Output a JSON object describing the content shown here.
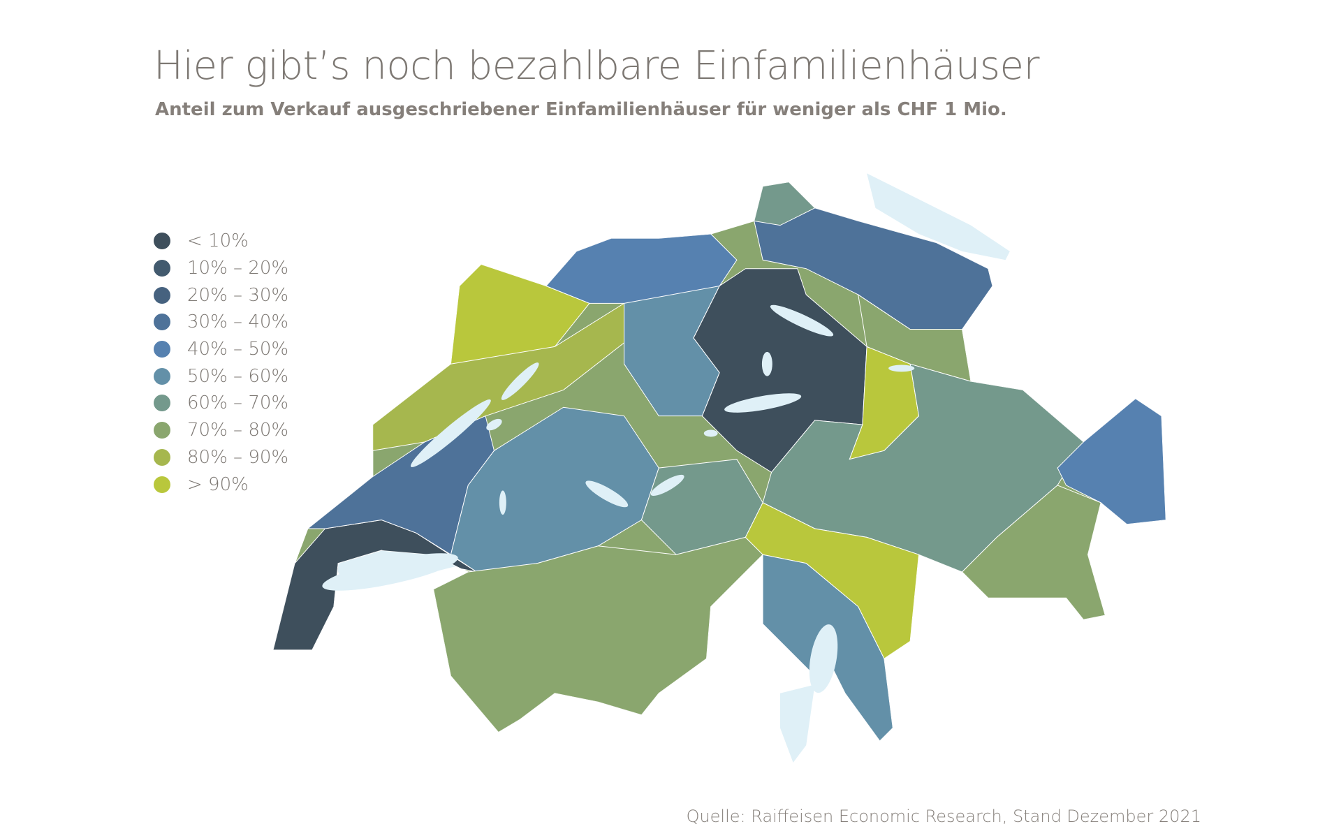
{
  "title": "Hier gibt’s noch bezahlbare Einfamilienhäuser",
  "subtitle": "Anteil zum Verkauf ausgeschriebener Einfamilienhäuser für weniger als CHF 1 Mio.",
  "legend": [
    {
      "label": "< 10%",
      "color": "#3e4f5c"
    },
    {
      "label": "10% – 20%",
      "color": "#425a6e"
    },
    {
      "label": "20% – 30%",
      "color": "#46627f"
    },
    {
      "label": "30% – 40%",
      "color": "#4e7299"
    },
    {
      "label": "40% – 50%",
      "color": "#5681b0"
    },
    {
      "label": "50% – 60%",
      "color": "#6390a8"
    },
    {
      "label": "60% – 70%",
      "color": "#74998c"
    },
    {
      "label": "70% – 80%",
      "color": "#8aa66e"
    },
    {
      "label": "80% – 90%",
      "color": "#a6b74e"
    },
    {
      "label": "> 90%",
      "color": "#b9c73c"
    }
  ],
  "map_region_classes": [
    9,
    8,
    0,
    3,
    5,
    6,
    7,
    0,
    5,
    3,
    4,
    9,
    6,
    4,
    9,
    5,
    7,
    6,
    7
  ],
  "lake_color": "#dff0f7",
  "source": "Quelle: Raiffeisen Economic Research, Stand Dezember 2021"
}
